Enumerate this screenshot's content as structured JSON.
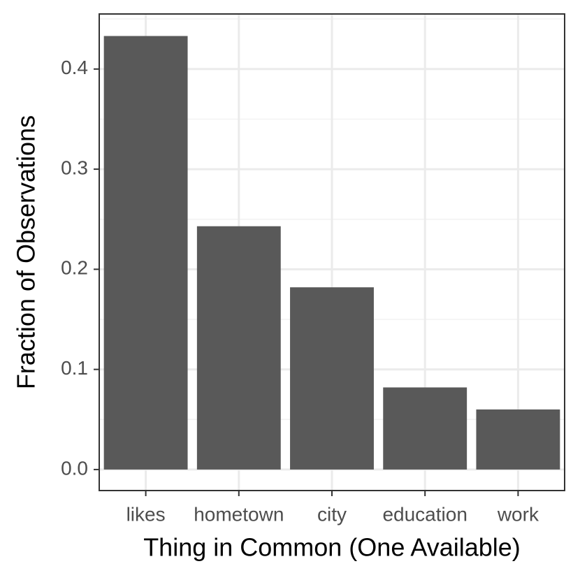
{
  "chart_data": {
    "type": "bar",
    "x_label": "Thing in Common (One Available)",
    "y_label": "Fraction of Observations",
    "categories": [
      "likes",
      "hometown",
      "city",
      "education",
      "work"
    ],
    "values": [
      0.433,
      0.243,
      0.182,
      0.082,
      0.06
    ],
    "color": "#595959",
    "ylim": [
      -0.021,
      0.455
    ],
    "yticks": [
      {
        "value": 0,
        "label": "0.0"
      },
      0.1,
      0.2,
      0.3,
      0.4
    ],
    "grid": true
  }
}
